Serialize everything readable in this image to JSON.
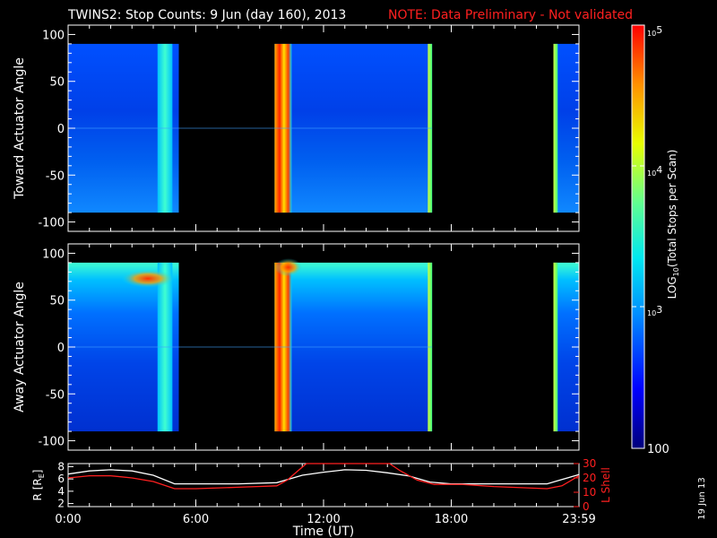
{
  "title": {
    "main": "TWINS2: Stop Counts:  9 Jun (day 160), 2013",
    "note": "NOTE: Data Preliminary - Not validated"
  },
  "stamp": "19 Jun 13",
  "panels": {
    "top": {
      "ylabel": "Toward Actuator Angle",
      "yticks": [
        "100",
        "50",
        "0",
        "-50",
        "-100"
      ]
    },
    "middle": {
      "ylabel": "Away Actuator Angle",
      "yticks": [
        "100",
        "50",
        "0",
        "-50",
        "-100"
      ]
    },
    "bottom": {
      "ylabel_left": "R [R",
      "ylabel_left_sub": "E",
      "ylabel_left_end": "]",
      "ylabel_right": "L Shell",
      "yticks_left": [
        "8",
        "6",
        "4",
        "2"
      ],
      "yticks_right": [
        "30",
        "20",
        "10",
        "0"
      ]
    }
  },
  "xaxis": {
    "label": "Time (UT)",
    "ticks": [
      "0:00",
      "6:00",
      "12:00",
      "18:00",
      "23:59"
    ]
  },
  "colorbar": {
    "label_prefix": "LOG",
    "label_sub": "10",
    "label_suffix": "(Total Stops per Scan)",
    "tick_100": "100",
    "tick_1e3_base": "10",
    "tick_1e3_exp": "3",
    "tick_1e4_base": "10",
    "tick_1e4_exp": "4",
    "tick_1e5_base": "10",
    "tick_1e5_exp": "5"
  },
  "colors": {
    "background": "#000000",
    "axes": "#ffffff",
    "note": "#ff2020",
    "r_line": "#ffffff",
    "l_line": "#ff2020"
  },
  "chart_data": [
    {
      "type": "heatmap",
      "panel": "top",
      "ylabel": "Toward Actuator Angle",
      "x_range_hours": [
        0,
        24
      ],
      "ylim": [
        -110,
        110
      ],
      "data_y_range": [
        -90,
        90
      ],
      "log_scale": true,
      "color_range": [
        100,
        100000
      ],
      "coverage_hours": [
        [
          0,
          5.2
        ],
        [
          9.7,
          17.1
        ],
        [
          22.8,
          24
        ]
      ],
      "bright_bands_hours": [
        [
          4.2,
          4.9
        ],
        [
          9.7,
          10.5
        ],
        [
          16.9,
          17.1
        ],
        [
          22.8,
          23.0
        ]
      ]
    },
    {
      "type": "heatmap",
      "panel": "middle",
      "ylabel": "Away Actuator Angle",
      "x_range_hours": [
        0,
        24
      ],
      "ylim": [
        -110,
        110
      ],
      "data_y_range": [
        -90,
        90
      ],
      "log_scale": true,
      "color_range": [
        100,
        100000
      ],
      "coverage_hours": [
        [
          0,
          5.2
        ],
        [
          9.7,
          17.1
        ],
        [
          22.8,
          24
        ]
      ],
      "bright_bands_hours": [
        [
          4.2,
          4.9
        ],
        [
          9.7,
          10.5
        ],
        [
          16.9,
          17.1
        ],
        [
          22.8,
          23.0
        ]
      ],
      "hot_spots": [
        {
          "x_hours": [
            2.5,
            5.0
          ],
          "y": 73
        },
        {
          "x_hours": [
            9.7,
            11.0
          ],
          "y": 85
        }
      ]
    },
    {
      "type": "line",
      "panel": "bottom",
      "x_range_hours": [
        0,
        24
      ],
      "ylim_left": [
        1.5,
        8.5
      ],
      "ylim_right": [
        0,
        30
      ],
      "series": [
        {
          "name": "R [RE]",
          "axis": "left",
          "x": [
            0,
            1,
            2,
            3,
            4,
            5,
            6,
            8,
            9.8,
            11,
            12,
            13,
            14,
            15,
            16,
            17,
            18,
            20,
            22.5,
            23.2,
            24
          ],
          "y": [
            6.8,
            7.3,
            7.5,
            7.3,
            6.6,
            5.2,
            5.2,
            5.2,
            5.4,
            6.6,
            7.1,
            7.5,
            7.4,
            7.0,
            6.5,
            5.5,
            5.2,
            5.2,
            5.2,
            5.9,
            6.7
          ]
        },
        {
          "name": "L Shell",
          "axis": "right",
          "x": [
            0,
            1,
            2,
            3,
            4,
            5,
            6,
            8,
            9.8,
            10.3,
            10.8,
            11.2,
            15.1,
            15.6,
            16.4,
            17.2,
            18.5,
            20,
            22.5,
            23.2,
            24
          ],
          "y": [
            20,
            21.5,
            21.5,
            20,
            17.5,
            12.5,
            12.5,
            13.5,
            14.5,
            18.5,
            25,
            30,
            30,
            25,
            18.5,
            15.5,
            15.5,
            14,
            12.5,
            14.5,
            21.5
          ]
        }
      ]
    }
  ]
}
